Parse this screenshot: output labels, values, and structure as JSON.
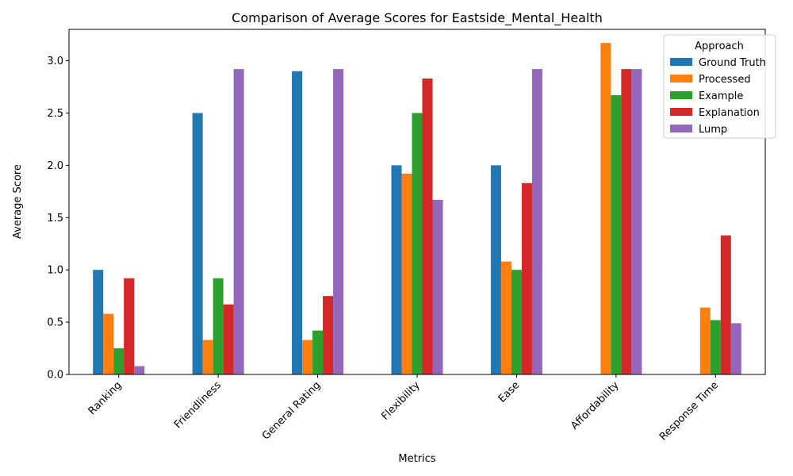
{
  "chart_data": {
    "type": "bar",
    "title": "Comparison of Average Scores for Eastside_Mental_Health",
    "xlabel": "Metrics",
    "ylabel": "Average Score",
    "ylim": [
      0,
      3.3
    ],
    "yticks": [
      "0.0",
      "0.5",
      "1.0",
      "1.5",
      "2.0",
      "2.5",
      "3.0"
    ],
    "categories": [
      "Ranking",
      "Friendliness",
      "General Rating",
      "Flexibility",
      "Ease",
      "Affordability",
      "Response Time"
    ],
    "legend": {
      "title": "Approach",
      "placement": "top-right"
    },
    "grid": false,
    "series": [
      {
        "name": "Ground Truth",
        "color": "#1f77b4",
        "values": [
          1.0,
          2.5,
          2.9,
          2.0,
          2.0,
          null,
          null
        ]
      },
      {
        "name": "Processed",
        "color": "#ff7f0e",
        "values": [
          0.58,
          0.33,
          0.33,
          1.92,
          1.08,
          3.17,
          0.64
        ]
      },
      {
        "name": "Example",
        "color": "#2ca02c",
        "values": [
          0.25,
          0.92,
          0.42,
          2.5,
          1.0,
          2.67,
          0.52
        ]
      },
      {
        "name": "Explanation",
        "color": "#d62728",
        "values": [
          0.92,
          0.67,
          0.75,
          2.83,
          1.83,
          2.92,
          1.33
        ]
      },
      {
        "name": "Lump",
        "color": "#9467bd",
        "values": [
          0.08,
          2.92,
          2.92,
          1.67,
          2.92,
          2.92,
          0.49
        ]
      }
    ]
  }
}
